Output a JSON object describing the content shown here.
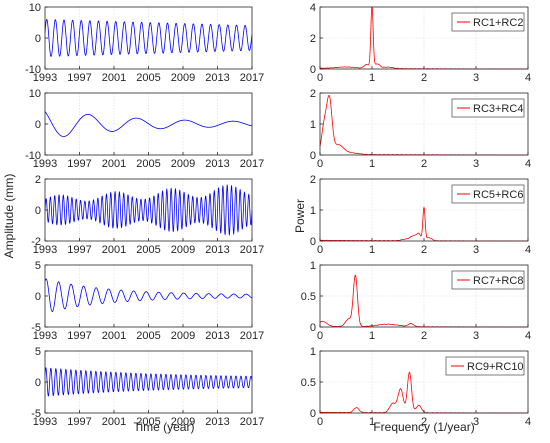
{
  "colors": {
    "time_series": "#0000ff",
    "spectrum": "#ff0000",
    "axis": "#262626"
  },
  "labels": {
    "left_xlabel": "Time (year)",
    "left_ylabel": "Amplitude (mm)",
    "right_xlabel": "Frequency (1/year)",
    "right_ylabel": "Power"
  },
  "chart_data": [
    {
      "type": "line",
      "panel": "time-1",
      "xlabel": "",
      "ylabel": "",
      "xlim": [
        1993,
        2017
      ],
      "ylim": [
        -10,
        10
      ],
      "xticks": [
        1993,
        1997,
        2001,
        2005,
        2009,
        2013,
        2017
      ],
      "yticks": [
        -10,
        0,
        10
      ],
      "series": [
        {
          "kind": "osc",
          "period_years": 1.0,
          "amp_start": 6,
          "amp_end": 4,
          "decay": 0,
          "phase": 0.3
        }
      ]
    },
    {
      "type": "line",
      "panel": "time-2",
      "xlabel": "",
      "ylabel": "",
      "xlim": [
        1993,
        2017
      ],
      "ylim": [
        -10,
        10
      ],
      "xticks": [
        1993,
        1997,
        2001,
        2005,
        2009,
        2013,
        2017
      ],
      "yticks": [
        -10,
        0,
        10
      ],
      "series": [
        {
          "kind": "osc",
          "period_years": 5.6,
          "amp_start": 5,
          "amp_end": 0.5,
          "decay": 0.11,
          "phase": 2.2
        }
      ]
    },
    {
      "type": "line",
      "panel": "time-3",
      "xlabel": "",
      "ylabel": "",
      "xlim": [
        1993,
        2017
      ],
      "ylim": [
        -2,
        2
      ],
      "xticks": [
        1993,
        1997,
        2001,
        2005,
        2009,
        2013,
        2017
      ],
      "yticks": [
        -2,
        0,
        2
      ],
      "series": [
        {
          "kind": "osc",
          "period_years": 0.5,
          "amp_start": 0.7,
          "amp_end": 1.3,
          "decay": 0,
          "phase": 0.0,
          "mod": 0.3
        }
      ]
    },
    {
      "type": "line",
      "panel": "time-4",
      "xlabel": "",
      "ylabel": "",
      "xlim": [
        1993,
        2017
      ],
      "ylim": [
        -5,
        5
      ],
      "xticks": [
        1993,
        1997,
        2001,
        2005,
        2009,
        2013,
        2017
      ],
      "yticks": [
        -5,
        0,
        5
      ],
      "series": [
        {
          "kind": "osc",
          "period_years": 1.45,
          "amp_start": 2.8,
          "amp_end": 0.2,
          "decay": 0.14,
          "phase": 1.0
        }
      ]
    },
    {
      "type": "line",
      "panel": "time-5",
      "xlabel": "Time (year)",
      "ylabel": "",
      "xlim": [
        1993,
        2017
      ],
      "ylim": [
        -5,
        5
      ],
      "xticks": [
        1993,
        1997,
        2001,
        2005,
        2009,
        2013,
        2017
      ],
      "yticks": [
        -5,
        0,
        5
      ],
      "series": [
        {
          "kind": "osc",
          "period_years": 0.58,
          "amp_start": 2.3,
          "amp_end": 0.6,
          "decay": 0.07,
          "phase": 0.5
        }
      ]
    },
    {
      "type": "line",
      "panel": "freq-1",
      "xlabel": "",
      "ylabel": "",
      "xlim": [
        0,
        4
      ],
      "ylim": [
        0,
        4
      ],
      "xticks": [
        0,
        1,
        2,
        3,
        4
      ],
      "yticks": [
        0,
        2,
        4
      ],
      "legend": "RC1+RC2",
      "legend_position": "top-right",
      "series": [
        {
          "name": "RC1+RC2",
          "kind": "spectrum",
          "peaks": [
            [
              1.0,
              4.0,
              0.022
            ],
            [
              0.9,
              0.25,
              0.05
            ],
            [
              1.1,
              0.3,
              0.05
            ],
            [
              1.3,
              0.1,
              0.1
            ],
            [
              0.5,
              0.1,
              0.2
            ]
          ]
        }
      ]
    },
    {
      "type": "line",
      "panel": "freq-2",
      "xlabel": "",
      "ylabel": "",
      "xlim": [
        0,
        4
      ],
      "ylim": [
        0,
        2
      ],
      "xticks": [
        0,
        1,
        2,
        3,
        4
      ],
      "yticks": [
        0,
        1,
        2
      ],
      "legend": "RC3+RC4",
      "legend_position": "top-right",
      "series": [
        {
          "name": "RC3+RC4",
          "kind": "spectrum",
          "peaks": [
            [
              0.18,
              1.7,
              0.05
            ],
            [
              0.08,
              0.9,
              0.05
            ],
            [
              0.35,
              0.3,
              0.1
            ],
            [
              0.6,
              0.05,
              0.15
            ]
          ]
        }
      ]
    },
    {
      "type": "line",
      "panel": "freq-3",
      "xlabel": "",
      "ylabel": "Power",
      "xlim": [
        0,
        4
      ],
      "ylim": [
        0,
        2
      ],
      "xticks": [
        0,
        1,
        2,
        3,
        4
      ],
      "yticks": [
        0,
        1,
        2
      ],
      "legend": "RC5+RC6",
      "legend_position": "top-right",
      "series": [
        {
          "name": "RC5+RC6",
          "kind": "spectrum",
          "peaks": [
            [
              2.0,
              1.05,
              0.022
            ],
            [
              1.8,
              0.15,
              0.06
            ],
            [
              1.9,
              0.2,
              0.04
            ],
            [
              2.1,
              0.1,
              0.05
            ],
            [
              1.65,
              0.05,
              0.08
            ]
          ]
        }
      ]
    },
    {
      "type": "line",
      "panel": "freq-4",
      "xlabel": "",
      "ylabel": "",
      "xlim": [
        0,
        4
      ],
      "ylim": [
        0,
        1
      ],
      "xticks": [
        0,
        1,
        2,
        3,
        4
      ],
      "yticks": [
        0,
        0.5,
        1
      ],
      "legend": "RC7+RC8",
      "legend_position": "top-right",
      "series": [
        {
          "name": "RC7+RC8",
          "kind": "spectrum",
          "peaks": [
            [
              0.68,
              0.82,
              0.04
            ],
            [
              0.55,
              0.12,
              0.06
            ],
            [
              0.05,
              0.08,
              0.08
            ],
            [
              1.3,
              0.04,
              0.2
            ],
            [
              1.75,
              0.05,
              0.05
            ]
          ]
        }
      ]
    },
    {
      "type": "line",
      "panel": "freq-5",
      "xlabel": "Frequency (1/year)",
      "ylabel": "",
      "xlim": [
        0,
        4
      ],
      "ylim": [
        0,
        1
      ],
      "xticks": [
        0,
        1,
        2,
        3,
        4
      ],
      "yticks": [
        0,
        0.5,
        1
      ],
      "legend": "RC9+RC10",
      "legend_position": "top-right",
      "series": [
        {
          "name": "RC9+RC10",
          "kind": "spectrum",
          "peaks": [
            [
              1.72,
              0.65,
              0.04
            ],
            [
              1.55,
              0.38,
              0.05
            ],
            [
              1.4,
              0.15,
              0.06
            ],
            [
              1.9,
              0.12,
              0.05
            ],
            [
              0.7,
              0.08,
              0.05
            ]
          ]
        }
      ]
    }
  ]
}
